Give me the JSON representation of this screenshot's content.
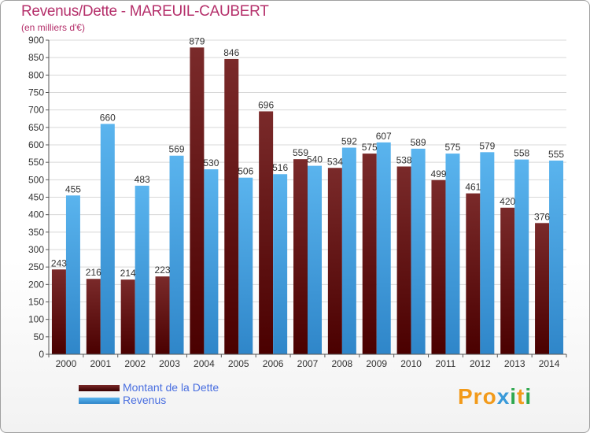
{
  "header": {
    "title": "Revenus/Dette - MAREUIL-CAUBERT",
    "subtitle": "(en milliers d'€)"
  },
  "legend": {
    "debt_label": "Montant de la Dette",
    "revenue_label": "Revenus"
  },
  "logo": {
    "text_pro": "Pro",
    "text_x": "x",
    "text_i": "i",
    "text_t": "t",
    "text_i2": "i"
  },
  "colors": {
    "debt_top": "#7a2a2a",
    "debt_bottom": "#4a0000",
    "revenue_top": "#5ab4ee",
    "revenue_bottom": "#2f86c9",
    "title": "#b5306b"
  },
  "chart_data": {
    "type": "bar",
    "title": "Revenus/Dette - MAREUIL-CAUBERT",
    "ylabel": "(en milliers d'€)",
    "xlabel": "",
    "categories": [
      "2000",
      "2001",
      "2002",
      "2003",
      "2004",
      "2005",
      "2006",
      "2007",
      "2008",
      "2009",
      "2010",
      "2011",
      "2012",
      "2013",
      "2014"
    ],
    "series": [
      {
        "name": "Montant de la Dette",
        "values": [
          243,
          216,
          214,
          223,
          879,
          846,
          696,
          559,
          534,
          575,
          538,
          499,
          461,
          420,
          376
        ]
      },
      {
        "name": "Revenus",
        "values": [
          455,
          660,
          483,
          569,
          530,
          506,
          516,
          540,
          592,
          607,
          589,
          575,
          579,
          558,
          555
        ]
      }
    ],
    "ylim": [
      0,
      900
    ],
    "yticks": [
      0,
      50,
      100,
      150,
      200,
      250,
      300,
      350,
      400,
      450,
      500,
      550,
      600,
      650,
      700,
      750,
      800,
      850,
      900
    ],
    "grid": true,
    "legend_position": "bottom-left"
  }
}
